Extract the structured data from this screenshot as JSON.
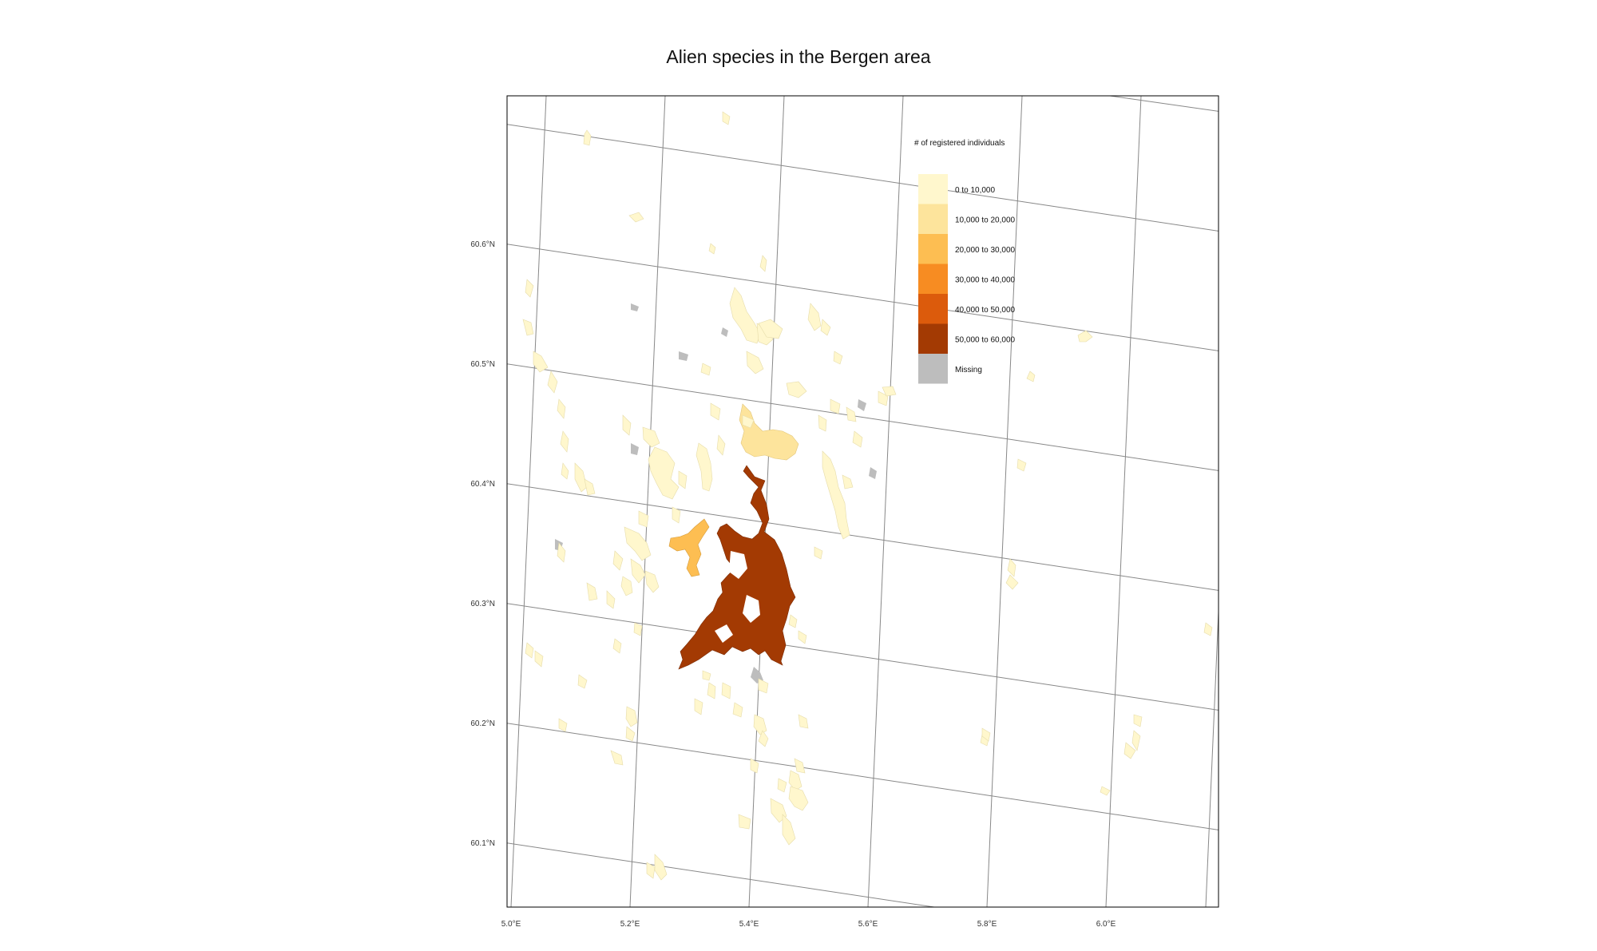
{
  "title": "Alien species in the Bergen area",
  "legend": {
    "title": "# of registered individuals",
    "classes": [
      {
        "label": "0 to 10,000",
        "color": "#fff7cd"
      },
      {
        "label": "10,000 to 20,000",
        "color": "#fde49c"
      },
      {
        "label": "20,000 to 30,000",
        "color": "#fdbe52"
      },
      {
        "label": "30,000 to 40,000",
        "color": "#f78c22"
      },
      {
        "label": "40,000 to 50,000",
        "color": "#dc5b0c"
      },
      {
        "label": "50,000 to 60,000",
        "color": "#a33a03"
      },
      {
        "label": "Missing",
        "color": "#bdbdbd"
      }
    ]
  },
  "axes": {
    "x_ticks": [
      "5.0°E",
      "5.2°E",
      "5.4°E",
      "5.6°E",
      "5.8°E",
      "6.0°E"
    ],
    "y_ticks": [
      "60.6°N",
      "60.5°N",
      "60.4°N",
      "60.3°N",
      "60.2°N",
      "60.1°N"
    ]
  },
  "colors": {
    "graticule": "#888888",
    "frame": "#000000",
    "outline_light": "#e6dcaa",
    "outline_dark": "#7a2a02"
  }
}
